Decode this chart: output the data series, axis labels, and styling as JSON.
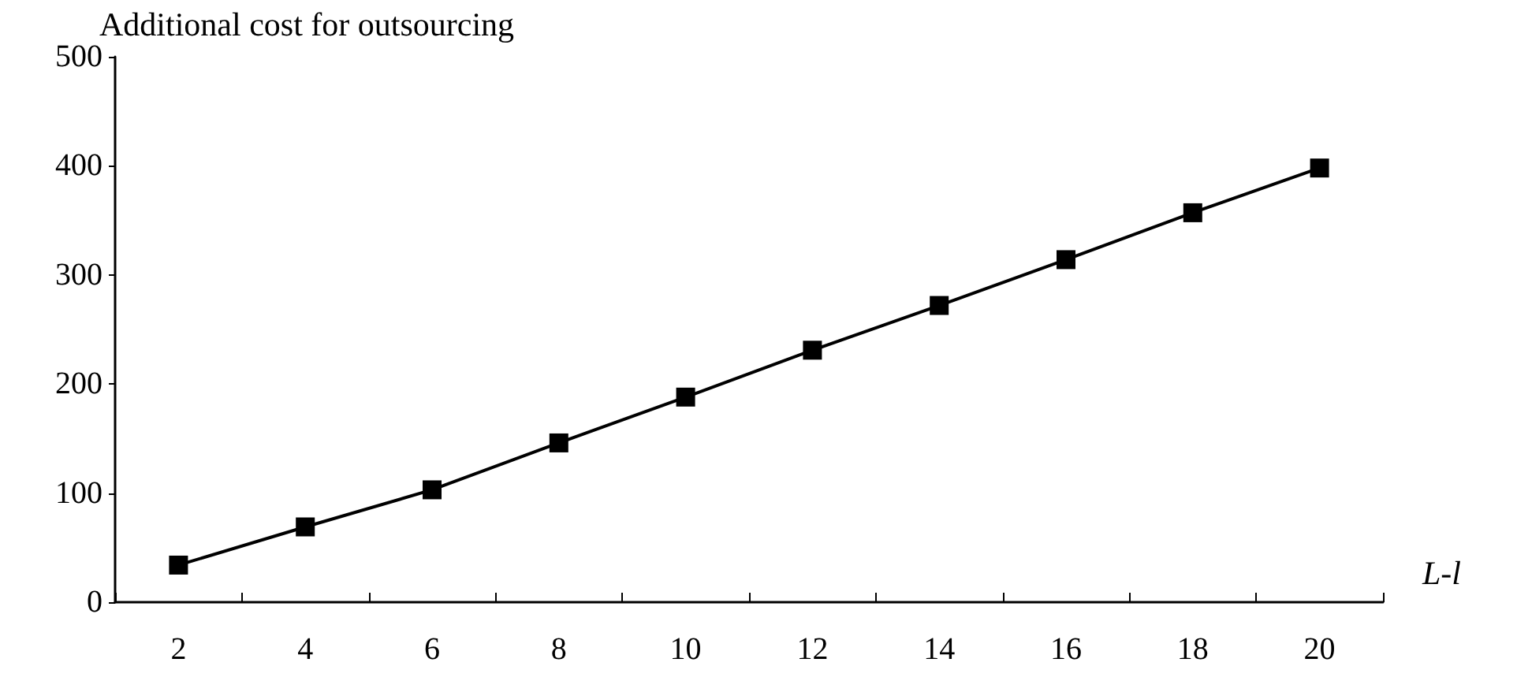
{
  "chart_data": {
    "type": "line",
    "ylabel": "Additional cost for outsourcing",
    "xlabel": "L-l",
    "categories": [
      "2",
      "4",
      "6",
      "8",
      "10",
      "12",
      "14",
      "16",
      "18",
      "20"
    ],
    "series": [
      {
        "color": "#000000",
        "values": [
          34,
          69,
          103,
          146,
          188,
          231,
          272,
          314,
          357,
          398
        ]
      }
    ],
    "ylim": [
      0,
      500
    ],
    "yticks": [
      0,
      100,
      200,
      300,
      400,
      500
    ],
    "grid": false,
    "marker": "square",
    "line_style": "solid"
  }
}
